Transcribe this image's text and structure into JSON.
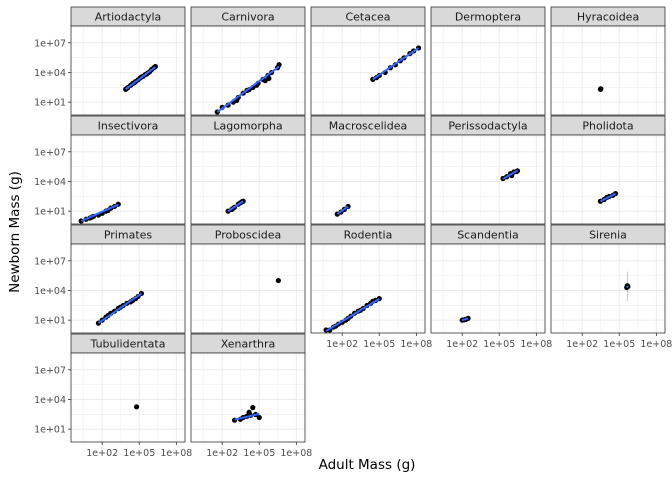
{
  "chart_data": {
    "type": "scatter",
    "subtype": "faceted scatter with linear fit lines",
    "xlabel": "Adult Mass (g)",
    "ylabel": "Newborn Mass (g)",
    "x_scale": "log10",
    "y_scale": "log10",
    "xlim": [
      0.3,
      500000000
    ],
    "ylim": [
      0.5,
      500000000
    ],
    "x_ticks": [
      {
        "value": 100,
        "label": "1e+02"
      },
      {
        "value": 100000,
        "label": "1e+05"
      },
      {
        "value": 100000000,
        "label": "1e+08"
      }
    ],
    "y_ticks": [
      {
        "value": 10,
        "label": "1e+01"
      },
      {
        "value": 10000,
        "label": "1e+04"
      },
      {
        "value": 10000000,
        "label": "1e+07"
      }
    ],
    "grid": true,
    "colors": {
      "points": "#000000",
      "fit_line": "#3366ff",
      "confidence_band": "#999999",
      "strip_fill": "#d9d9d9",
      "panel_border": "#333333",
      "grid": "#ebebeb"
    },
    "facets": [
      {
        "name": "Artiodactyla",
        "points": [
          [
            8000,
            200
          ],
          [
            12000,
            300
          ],
          [
            20000,
            500
          ],
          [
            30000,
            800
          ],
          [
            50000,
            1200
          ],
          [
            80000,
            1800
          ],
          [
            120000,
            2800
          ],
          [
            200000,
            4000
          ],
          [
            300000,
            6000
          ],
          [
            500000,
            9000
          ],
          [
            700000,
            12000
          ],
          [
            1000000,
            20000
          ],
          [
            1500000,
            30000
          ],
          [
            2000000,
            40000
          ],
          [
            10000,
            250
          ],
          [
            40000,
            900
          ],
          [
            150000,
            3500
          ],
          [
            400000,
            7000
          ]
        ],
        "fit": [
          [
            8000,
            200
          ],
          [
            2000000,
            35000
          ]
        ]
      },
      {
        "name": "Carnivora",
        "points": [
          [
            40,
            1
          ],
          [
            100,
            3
          ],
          [
            300,
            5
          ],
          [
            800,
            10
          ],
          [
            2000,
            30
          ],
          [
            5000,
            80
          ],
          [
            10000,
            150
          ],
          [
            30000,
            300
          ],
          [
            80000,
            800
          ],
          [
            200000,
            2000
          ],
          [
            500000,
            5000
          ],
          [
            1000000,
            10000
          ],
          [
            3000000,
            30000
          ],
          [
            4000000,
            60000
          ],
          [
            1500,
            15
          ],
          [
            15000,
            180
          ],
          [
            60000,
            500
          ],
          [
            300000,
            1500
          ],
          [
            600000,
            2500
          ]
        ],
        "fit": [
          [
            40,
            1
          ],
          [
            4000000,
            40000
          ]
        ]
      },
      {
        "name": "Cetacea",
        "points": [
          [
            30000,
            2000
          ],
          [
            60000,
            3000
          ],
          [
            100000,
            5000
          ],
          [
            300000,
            10000
          ],
          [
            800000,
            30000
          ],
          [
            2000000,
            60000
          ],
          [
            5000000,
            150000
          ],
          [
            10000000,
            300000
          ],
          [
            30000000,
            800000
          ],
          [
            60000000,
            1500000
          ],
          [
            150000000,
            3000000
          ]
        ],
        "fit": [
          [
            30000,
            2000
          ],
          [
            150000000,
            3000000
          ]
        ]
      },
      {
        "name": "Dermoptera",
        "points": [],
        "fit": []
      },
      {
        "name": "Hyracoidea",
        "points": [
          [
            3000,
            200
          ],
          [
            3200,
            220
          ]
        ],
        "fit": []
      },
      {
        "name": "Insectivora",
        "points": [
          [
            2,
            1
          ],
          [
            5,
            1.5
          ],
          [
            10,
            2
          ],
          [
            20,
            3
          ],
          [
            50,
            4
          ],
          [
            100,
            6
          ],
          [
            200,
            10
          ],
          [
            500,
            20
          ],
          [
            1000,
            30
          ],
          [
            2000,
            50
          ],
          [
            15,
            2.5
          ],
          [
            300,
            12
          ]
        ],
        "fit": [
          [
            2,
            1
          ],
          [
            2000,
            45
          ]
        ]
      },
      {
        "name": "Lagomorpha",
        "points": [
          [
            300,
            10
          ],
          [
            600,
            15
          ],
          [
            1000,
            25
          ],
          [
            2000,
            50
          ],
          [
            3000,
            70
          ],
          [
            5000,
            100
          ],
          [
            800,
            20
          ],
          [
            4000,
            90
          ]
        ],
        "fit": [
          [
            300,
            10
          ],
          [
            5000,
            100
          ]
        ]
      },
      {
        "name": "Macroscelidea",
        "points": [
          [
            40,
            5
          ],
          [
            80,
            8
          ],
          [
            150,
            15
          ],
          [
            300,
            30
          ]
        ],
        "fit": [
          [
            40,
            5
          ],
          [
            300,
            30
          ]
        ]
      },
      {
        "name": "Perissodactyla",
        "points": [
          [
            200000,
            20000
          ],
          [
            400000,
            30000
          ],
          [
            800000,
            60000
          ],
          [
            1500000,
            90000
          ],
          [
            3000000,
            120000
          ],
          [
            1000000,
            40000
          ],
          [
            2500000,
            100000
          ]
        ],
        "fit": [
          [
            200000,
            18000
          ],
          [
            3000000,
            130000
          ]
        ]
      },
      {
        "name": "Pholidota",
        "points": [
          [
            3000,
            100
          ],
          [
            6000,
            150
          ],
          [
            15000,
            300
          ],
          [
            30000,
            400
          ],
          [
            50000,
            600
          ],
          [
            10000,
            250
          ]
        ],
        "fit": [
          [
            3000,
            100
          ],
          [
            50000,
            600
          ]
        ]
      },
      {
        "name": "Primates",
        "points": [
          [
            50,
            5
          ],
          [
            100,
            10
          ],
          [
            200,
            20
          ],
          [
            500,
            50
          ],
          [
            1000,
            80
          ],
          [
            2000,
            150
          ],
          [
            5000,
            300
          ],
          [
            10000,
            500
          ],
          [
            30000,
            1000
          ],
          [
            80000,
            2500
          ],
          [
            150000,
            5000
          ],
          [
            300,
            30
          ],
          [
            3000,
            200
          ],
          [
            20000,
            700
          ],
          [
            50000,
            1500
          ]
        ],
        "fit": [
          [
            50,
            5
          ],
          [
            150000,
            5000
          ]
        ]
      },
      {
        "name": "Proboscidea",
        "points": [
          [
            3500000,
            100000
          ]
        ],
        "fit": []
      },
      {
        "name": "Rodentia",
        "points": [
          [
            5,
            1
          ],
          [
            10,
            1
          ],
          [
            20,
            2
          ],
          [
            50,
            4
          ],
          [
            100,
            6
          ],
          [
            200,
            10
          ],
          [
            500,
            25
          ],
          [
            1000,
            50
          ],
          [
            2000,
            80
          ],
          [
            5000,
            150
          ],
          [
            10000,
            300
          ],
          [
            20000,
            500
          ],
          [
            30000,
            800
          ],
          [
            50000,
            1000
          ],
          [
            100000,
            1500
          ],
          [
            30,
            2.5
          ],
          [
            300,
            15
          ],
          [
            3000,
            100
          ]
        ],
        "fit": [
          [
            5,
            0.8
          ],
          [
            100000,
            1400
          ]
        ]
      },
      {
        "name": "Scandentia",
        "points": [
          [
            100,
            10
          ],
          [
            150,
            11
          ],
          [
            200,
            12
          ],
          [
            300,
            15
          ]
        ],
        "fit": [
          [
            100,
            10
          ],
          [
            300,
            15
          ]
        ]
      },
      {
        "name": "Sirenia",
        "points": [
          [
            400000,
            20000
          ],
          [
            450000,
            30000
          ],
          [
            500000,
            25000
          ],
          [
            420000,
            22000
          ]
        ],
        "fit": [
          [
            400000,
            20000
          ],
          [
            500000,
            28000
          ]
        ]
      },
      {
        "name": "Tubulidentata",
        "points": [
          [
            60000,
            1800
          ]
        ],
        "fit": []
      },
      {
        "name": "Xenarthra",
        "points": [
          [
            1000,
            80
          ],
          [
            3000,
            100
          ],
          [
            5000,
            150
          ],
          [
            10000,
            200
          ],
          [
            20000,
            250
          ],
          [
            30000,
            1500
          ],
          [
            50000,
            300
          ],
          [
            100000,
            150
          ],
          [
            15000,
            500
          ]
        ],
        "fit": [
          [
            1000,
            90
          ],
          [
            100000,
            350
          ]
        ]
      }
    ]
  }
}
